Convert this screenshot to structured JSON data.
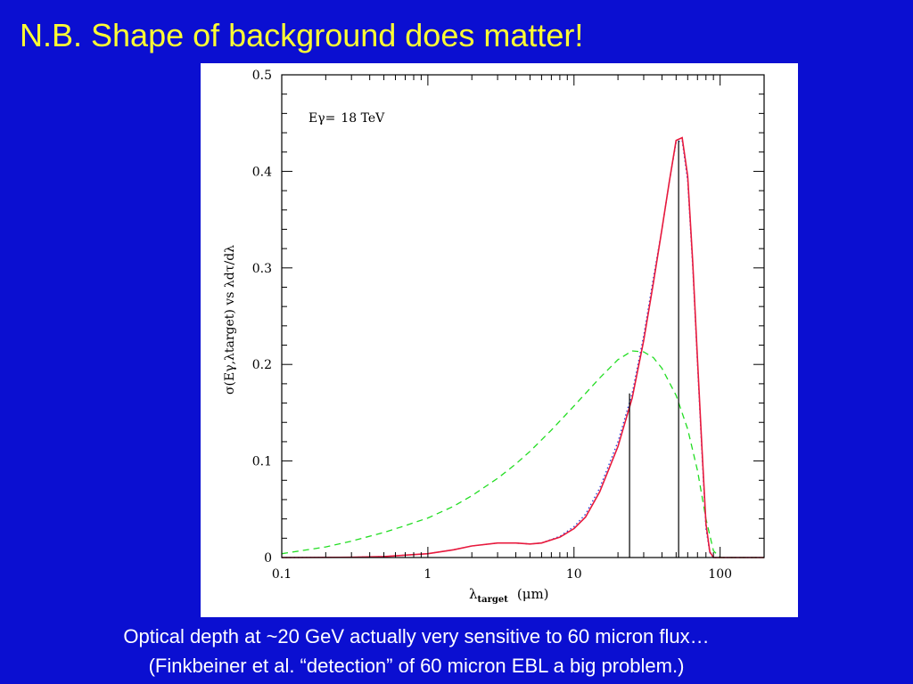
{
  "slide": {
    "title": "N.B. Shape of background does matter!",
    "caption_line1": "Optical depth at ~20 GeV actually  very sensitive to 60 micron flux…",
    "caption_line2": "(Finkbeiner et al. “detection” of 60 micron EBL a  big problem.)"
  },
  "colors": {
    "background": "#0b0fd1",
    "title": "#ffff33",
    "caption": "#ffffff",
    "panel": "#ffffff",
    "solid_series": "#e8193c",
    "dotted_series": "#1f3bd6",
    "dashed_series": "#22dd22",
    "axes": "#000000"
  },
  "chart_data": {
    "type": "line",
    "title": "",
    "annotation": {
      "label": "Eγ=",
      "value": "18 TeV"
    },
    "xlabel": {
      "main": "λ",
      "sub": "target",
      "units": "(μm)"
    },
    "ylabel": "σ(Eγ,λtarget)  vs  λdτ/dλ",
    "xscale": "log",
    "xlim": [
      0.1,
      200
    ],
    "ylim": [
      0,
      0.5
    ],
    "xticks": [
      {
        "value": 0.1,
        "label": "0.1"
      },
      {
        "value": 1,
        "label": "1"
      },
      {
        "value": 10,
        "label": "10"
      },
      {
        "value": 100,
        "label": "100"
      }
    ],
    "yticks": [
      {
        "value": 0,
        "label": "0"
      },
      {
        "value": 0.1,
        "label": "0.1"
      },
      {
        "value": 0.2,
        "label": "0.2"
      },
      {
        "value": 0.3,
        "label": "0.3"
      },
      {
        "value": 0.4,
        "label": "0.4"
      },
      {
        "value": 0.5,
        "label": "0.5"
      }
    ],
    "grid": false,
    "series": [
      {
        "style": "dashed",
        "color": "#22dd22",
        "points": [
          [
            0.1,
            0.004
          ],
          [
            0.2,
            0.011
          ],
          [
            0.3,
            0.017
          ],
          [
            0.5,
            0.026
          ],
          [
            0.7,
            0.033
          ],
          [
            1,
            0.041
          ],
          [
            1.5,
            0.053
          ],
          [
            2,
            0.064
          ],
          [
            3,
            0.082
          ],
          [
            4,
            0.097
          ],
          [
            5,
            0.11
          ],
          [
            7,
            0.132
          ],
          [
            10,
            0.157
          ],
          [
            15,
            0.186
          ],
          [
            20,
            0.205
          ],
          [
            25,
            0.214
          ],
          [
            30,
            0.213
          ],
          [
            35,
            0.207
          ],
          [
            40,
            0.196
          ],
          [
            50,
            0.168
          ],
          [
            60,
            0.133
          ],
          [
            70,
            0.09
          ],
          [
            80,
            0.04
          ],
          [
            90,
            0.007
          ],
          [
            100,
            0.0
          ],
          [
            200,
            0.0
          ]
        ]
      },
      {
        "style": "dotted",
        "color": "#1f3bd6",
        "points": [
          [
            0.1,
            0.0
          ],
          [
            0.3,
            0.0003
          ],
          [
            0.5,
            0.001
          ],
          [
            0.8,
            0.003
          ],
          [
            1,
            0.004
          ],
          [
            1.5,
            0.008
          ],
          [
            2,
            0.012
          ],
          [
            3,
            0.015
          ],
          [
            4,
            0.015
          ],
          [
            5,
            0.014
          ],
          [
            6,
            0.015
          ],
          [
            8,
            0.022
          ],
          [
            10,
            0.032
          ],
          [
            12,
            0.045
          ],
          [
            15,
            0.072
          ],
          [
            20,
            0.12
          ],
          [
            25,
            0.17
          ],
          [
            30,
            0.23
          ],
          [
            35,
            0.29
          ],
          [
            40,
            0.34
          ],
          [
            45,
            0.39
          ],
          [
            50,
            0.43
          ],
          [
            55,
            0.432
          ],
          [
            60,
            0.39
          ],
          [
            65,
            0.3
          ],
          [
            70,
            0.2
          ],
          [
            75,
            0.11
          ],
          [
            80,
            0.03
          ],
          [
            85,
            0.005
          ],
          [
            90,
            0.0
          ],
          [
            200,
            0.0
          ]
        ]
      },
      {
        "style": "solid",
        "color": "#e8193c",
        "points": [
          [
            0.1,
            0.0
          ],
          [
            0.3,
            0.0003
          ],
          [
            0.5,
            0.001
          ],
          [
            0.8,
            0.003
          ],
          [
            1,
            0.004
          ],
          [
            1.5,
            0.008
          ],
          [
            2,
            0.012
          ],
          [
            3,
            0.015
          ],
          [
            4,
            0.015
          ],
          [
            5,
            0.014
          ],
          [
            6,
            0.015
          ],
          [
            8,
            0.021
          ],
          [
            10,
            0.03
          ],
          [
            12,
            0.042
          ],
          [
            15,
            0.068
          ],
          [
            20,
            0.115
          ],
          [
            25,
            0.165
          ],
          [
            30,
            0.225
          ],
          [
            35,
            0.285
          ],
          [
            40,
            0.34
          ],
          [
            45,
            0.39
          ],
          [
            50,
            0.432
          ],
          [
            55,
            0.435
          ],
          [
            60,
            0.395
          ],
          [
            65,
            0.305
          ],
          [
            70,
            0.205
          ],
          [
            75,
            0.115
          ],
          [
            80,
            0.035
          ],
          [
            85,
            0.006
          ],
          [
            90,
            0.0
          ],
          [
            200,
            0.0
          ]
        ]
      }
    ],
    "vertical_markers": [
      {
        "x": 24,
        "y_top": 0.17
      },
      {
        "x": 52,
        "y_top": 0.432
      }
    ]
  }
}
